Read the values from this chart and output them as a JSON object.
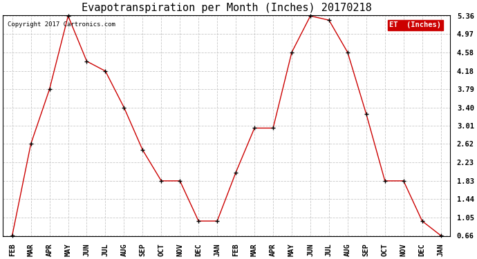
{
  "title": "Evapotranspiration per Month (Inches) 20170218",
  "copyright_text": "Copyright 2017 Cartronics.com",
  "legend_label": "ET  (Inches)",
  "x_labels": [
    "FEB",
    "MAR",
    "APR",
    "MAY",
    "JUN",
    "JUL",
    "AUG",
    "SEP",
    "OCT",
    "NOV",
    "DEC",
    "JAN",
    "FEB",
    "MAR",
    "APR",
    "MAY",
    "JUN",
    "JUL",
    "AUG",
    "SEP",
    "OCT",
    "NOV",
    "DEC",
    "JAN"
  ],
  "y_values": [
    0.66,
    2.62,
    3.79,
    5.36,
    4.39,
    4.18,
    3.4,
    2.49,
    1.83,
    1.83,
    0.97,
    0.97,
    2.01,
    2.96,
    2.96,
    4.58,
    5.36,
    5.27,
    4.58,
    3.26,
    1.83,
    1.83,
    0.97,
    0.66
  ],
  "y_ticks": [
    0.66,
    1.05,
    1.44,
    1.83,
    2.23,
    2.62,
    3.01,
    3.4,
    3.79,
    4.18,
    4.58,
    4.97,
    5.36
  ],
  "line_color": "#cc0000",
  "marker": "+",
  "background_color": "#ffffff",
  "grid_color": "#c8c8c8",
  "title_fontsize": 11,
  "tick_fontsize": 7.5,
  "legend_bg_color": "#cc0000",
  "legend_text_color": "#ffffff",
  "copyright_fontsize": 6.5,
  "legend_fontsize": 7.5
}
